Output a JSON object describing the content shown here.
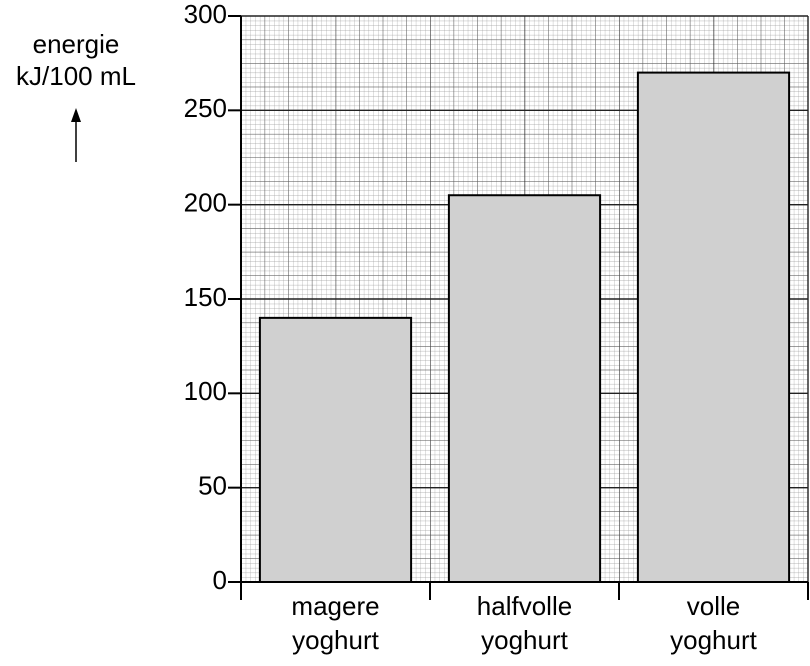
{
  "chart_data": {
    "type": "bar",
    "y_label": [
      "energie",
      "kJ/100 mL"
    ],
    "categories": [
      "magere yoghurt",
      "halfvolle yoghurt",
      "volle yoghurt"
    ],
    "values": [
      140,
      205,
      270
    ],
    "color": "#d0d0d0",
    "ylim": [
      0,
      300
    ],
    "yticks": [
      0,
      50,
      100,
      150,
      200,
      250,
      300
    ],
    "grid": true
  }
}
